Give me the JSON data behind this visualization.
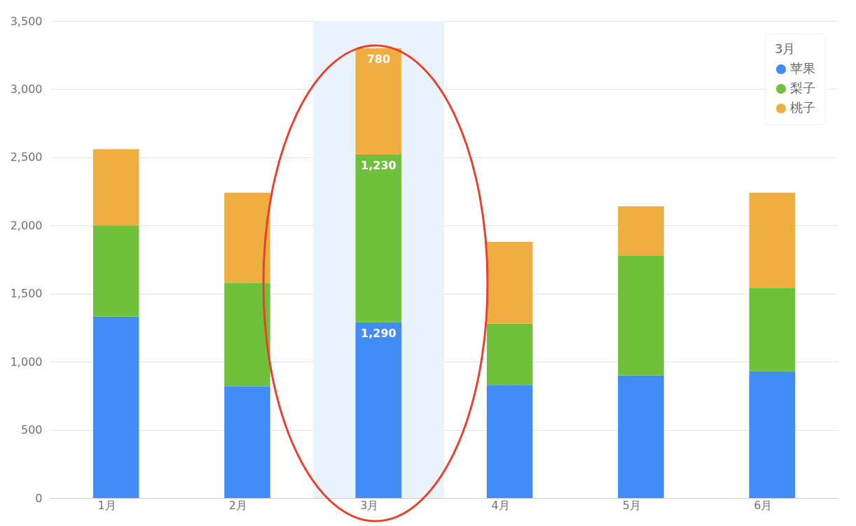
{
  "chart_data": {
    "type": "bar",
    "stacked": true,
    "legend_title": "3月",
    "categories": [
      "1月",
      "2月",
      "3月",
      "4月",
      "5月",
      "6月"
    ],
    "series": [
      {
        "name": "苹果",
        "color": "#418cf5",
        "values": [
          1330,
          820,
          1290,
          830,
          900,
          930
        ],
        "value_labels": [
          null,
          null,
          "1,290",
          null,
          null,
          null
        ]
      },
      {
        "name": "梨子",
        "color": "#71c03c",
        "values": [
          670,
          760,
          1230,
          450,
          880,
          610
        ],
        "value_labels": [
          null,
          null,
          "1,230",
          null,
          null,
          null
        ]
      },
      {
        "name": "桃子",
        "color": "#eeae41",
        "values": [
          560,
          660,
          780,
          600,
          360,
          700
        ],
        "value_labels": [
          null,
          null,
          "780",
          null,
          null,
          null
        ]
      }
    ],
    "ylim": [
      0,
      3500
    ],
    "yticks": [
      0,
      500,
      {
        "value": 1000,
        "label": "1,000"
      },
      {
        "value": 1500,
        "label": "1,500"
      },
      {
        "value": 2000,
        "label": "2,000"
      },
      {
        "value": 2500,
        "label": "2,500"
      },
      {
        "value": 3000,
        "label": "3,000"
      },
      {
        "value": 3500,
        "label": "3,500"
      }
    ],
    "grid": "y",
    "legend": "top right",
    "bands": [
      {
        "axis": "x",
        "from": "3月",
        "to": "3月",
        "color": "#eaf2fe"
      }
    ]
  }
}
